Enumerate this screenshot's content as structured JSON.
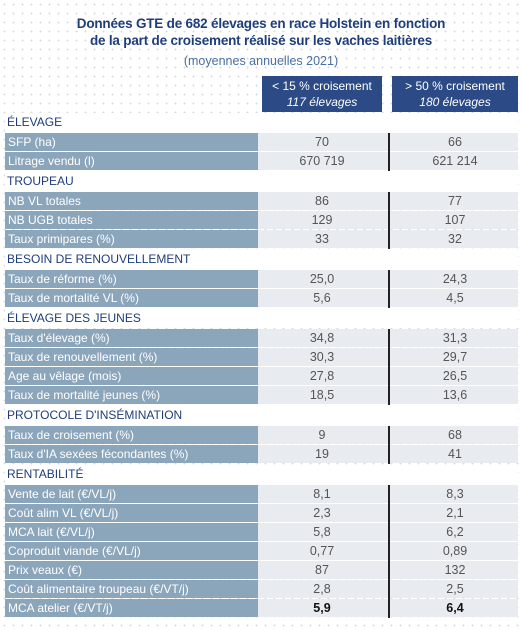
{
  "header": {
    "title_lines": [
      "Données GTE de 682 élevages en race Holstein en fonction",
      "de la part de croisement réalisé sur les vaches laitières"
    ],
    "subtitle": "(moyennes annuelles 2021)"
  },
  "table": {
    "columns": [
      {
        "label": "< 15 % croisement",
        "count": "117 élevages"
      },
      {
        "label": "> 50 % croisement",
        "count": "180 élevages"
      }
    ],
    "sections": [
      {
        "title": "ÉLEVAGE",
        "rows": [
          {
            "label": "SFP (ha)",
            "values": [
              "70",
              "66"
            ]
          },
          {
            "label": "Litrage vendu (l)",
            "values": [
              "670 719",
              "621 214"
            ]
          }
        ]
      },
      {
        "title": "TROUPEAU",
        "rows": [
          {
            "label": "NB VL totales",
            "values": [
              "86",
              "77"
            ]
          },
          {
            "label": "NB UGB totales",
            "values": [
              "129",
              "107"
            ]
          },
          {
            "label": "Taux primipares (%)",
            "values": [
              "33",
              "32"
            ]
          }
        ]
      },
      {
        "title": "BESOIN DE RENOUVELLEMENT",
        "rows": [
          {
            "label": "Taux de réforme (%)",
            "values": [
              "25,0",
              "24,3"
            ]
          },
          {
            "label": "Taux de mortalité VL (%)",
            "values": [
              "5,6",
              "4,5"
            ]
          }
        ]
      },
      {
        "title": "ÉLEVAGE DES JEUNES",
        "rows": [
          {
            "label": "Taux d'élevage (%)",
            "values": [
              "34,8",
              "31,3"
            ]
          },
          {
            "label": "Taux de renouvellement (%)",
            "values": [
              "30,3",
              "29,7"
            ]
          },
          {
            "label": "Age au vêlage (mois)",
            "values": [
              "27,8",
              "26,5"
            ]
          },
          {
            "label": "Taux de mortalité jeunes (%)",
            "values": [
              "18,5",
              "13,6"
            ]
          }
        ]
      },
      {
        "title": "PROTOCOLE D'INSÉMINATION",
        "rows": [
          {
            "label": "Taux de croisement (%)",
            "values": [
              "9",
              "68"
            ]
          },
          {
            "label": "Taux d'IA sexées fécondantes (%)",
            "values": [
              "19",
              "41"
            ]
          }
        ]
      },
      {
        "title": "RENTABILITÉ",
        "rows": [
          {
            "label": "Vente de lait (€/VL/j)",
            "values": [
              "8,1",
              "8,3"
            ]
          },
          {
            "label": "Coût alim VL (€/VL/j)",
            "values": [
              "2,3",
              "2,1"
            ]
          },
          {
            "label": "MCA lait (€/VL/j)",
            "values": [
              "5,8",
              "6,2"
            ]
          },
          {
            "label": "Coproduit viande (€/VL/j)",
            "values": [
              "0,77",
              "0,89"
            ]
          },
          {
            "label": "Prix veaux (€)",
            "values": [
              "87",
              "132"
            ]
          },
          {
            "label": "Coût alimentaire troupeau (€/VT/j)",
            "values": [
              "2,8",
              "2,5"
            ]
          },
          {
            "label": "MCA atelier (€/VT/j)",
            "values": [
              "5,9",
              "6,4"
            ]
          }
        ]
      }
    ]
  }
}
